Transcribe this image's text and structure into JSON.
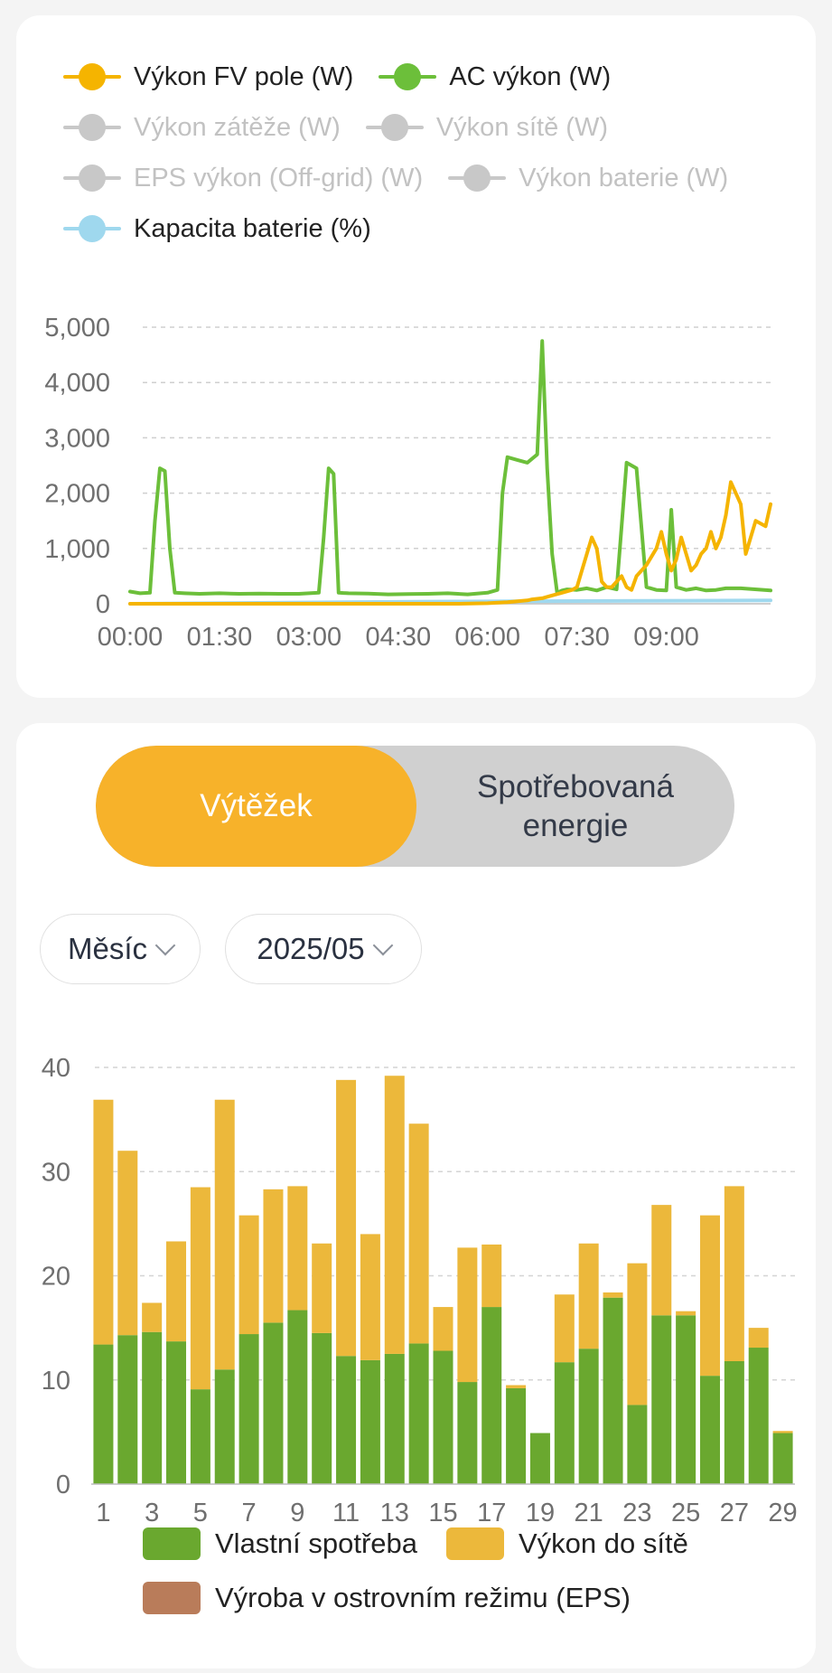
{
  "power_chart": {
    "legend": [
      {
        "label": "Výkon FV pole (W)",
        "color": "#f5b400",
        "active": true,
        "line": true
      },
      {
        "label": "AC výkon (W)",
        "color": "#6cbf3a",
        "active": true,
        "line": true
      },
      {
        "label": "Výkon zátěže (W)",
        "color": "#c8c8c8",
        "active": false,
        "line": true
      },
      {
        "label": "Výkon sítě (W)",
        "color": "#c8c8c8",
        "active": false,
        "line": true
      },
      {
        "label": "EPS výkon (Off-grid) (W)",
        "color": "#c8c8c8",
        "active": false,
        "line": true
      },
      {
        "label": "Výkon baterie (W)",
        "color": "#c8c8c8",
        "active": false,
        "line": true
      },
      {
        "label": "Kapacita baterie (%)",
        "color": "#9fd8ee",
        "active": true,
        "line": false
      }
    ]
  },
  "toggle": {
    "active_label": "Výtěžek",
    "inactive_label": "Spotřebovaná\nenergie"
  },
  "filters": {
    "period": "Měsíc",
    "date": "2025/05"
  },
  "monthly_legend": [
    {
      "label": "Vlastní spotřeba",
      "color": "#6aa82f"
    },
    {
      "label": "Výkon do sítě",
      "color": "#ecb83b"
    },
    {
      "label": "Výroba v ostrovním režimu (EPS)",
      "color": "#b97c5a"
    }
  ],
  "chart_data": [
    {
      "type": "line",
      "x_ticks": [
        "00:00",
        "01:30",
        "03:00",
        "04:30",
        "06:00",
        "07:30",
        "09:00"
      ],
      "y_ticks": [
        "0",
        "1,000",
        "2,000",
        "3,000",
        "4,000",
        "5,000"
      ],
      "ylim": [
        0,
        5000
      ],
      "xlim_minutes": [
        0,
        645
      ],
      "grid": true,
      "series": [
        {
          "name": "AC výkon (W)",
          "color": "#6cbf3a",
          "x": [
            "00:00",
            "00:10",
            "00:20",
            "00:25",
            "00:30",
            "00:35",
            "00:40",
            "00:45",
            "00:55",
            "01:10",
            "01:30",
            "01:50",
            "02:10",
            "02:30",
            "02:50",
            "03:00",
            "03:10",
            "03:15",
            "03:20",
            "03:25",
            "03:30",
            "03:40",
            "04:00",
            "04:20",
            "04:40",
            "05:00",
            "05:20",
            "05:40",
            "06:00",
            "06:10",
            "06:15",
            "06:20",
            "06:30",
            "06:40",
            "06:50",
            "06:55",
            "07:00",
            "07:05",
            "07:10",
            "07:15",
            "07:20",
            "07:30",
            "07:40",
            "07:50",
            "08:00",
            "08:10",
            "08:15",
            "08:20",
            "08:30",
            "08:40",
            "08:50",
            "09:00",
            "09:05",
            "09:10",
            "09:20",
            "09:30",
            "09:40",
            "09:50",
            "10:00",
            "10:15",
            "10:45"
          ],
          "values": [
            220,
            190,
            200,
            1500,
            2450,
            2400,
            1000,
            200,
            190,
            180,
            190,
            180,
            185,
            180,
            180,
            190,
            200,
            1200,
            2450,
            2350,
            200,
            190,
            185,
            170,
            175,
            180,
            190,
            170,
            200,
            250,
            2000,
            2650,
            2600,
            2550,
            2700,
            4750,
            2450,
            900,
            200,
            240,
            260,
            250,
            280,
            240,
            300,
            260,
            1400,
            2550,
            2450,
            300,
            250,
            240,
            1700,
            300,
            250,
            280,
            240,
            250,
            280,
            280,
            240
          ]
        },
        {
          "name": "Výkon FV pole (W)",
          "color": "#f5b400",
          "x": [
            "00:00",
            "05:30",
            "06:00",
            "06:20",
            "06:40",
            "06:45",
            "06:55",
            "07:05",
            "07:15",
            "07:25",
            "07:30",
            "07:35",
            "07:40",
            "07:45",
            "07:50",
            "07:55",
            "08:00",
            "08:05",
            "08:10",
            "08:15",
            "08:20",
            "08:25",
            "08:30",
            "08:40",
            "08:50",
            "08:55",
            "09:00",
            "09:05",
            "09:10",
            "09:15",
            "09:20",
            "09:25",
            "09:30",
            "09:35",
            "09:40",
            "09:45",
            "09:50",
            "09:55",
            "10:00",
            "10:05",
            "10:10",
            "10:15",
            "10:20",
            "10:30",
            "10:40",
            "10:45"
          ],
          "values": [
            0,
            0,
            10,
            30,
            60,
            80,
            100,
            150,
            200,
            250,
            300,
            600,
            900,
            1200,
            1000,
            400,
            300,
            300,
            400,
            500,
            300,
            250,
            500,
            700,
            1000,
            1300,
            900,
            600,
            800,
            1200,
            900,
            600,
            700,
            900,
            1000,
            1300,
            1000,
            1200,
            1600,
            2200,
            2000,
            1800,
            900,
            1500,
            1400,
            1800
          ]
        },
        {
          "name": "Kapacita baterie (%)",
          "color": "#9fd8ee",
          "x": [
            "00:00",
            "05:00",
            "10:45"
          ],
          "values": [
            0,
            40,
            60
          ]
        }
      ]
    },
    {
      "type": "bar",
      "stacked": true,
      "categories": [
        1,
        2,
        3,
        4,
        5,
        6,
        7,
        8,
        9,
        10,
        11,
        12,
        13,
        14,
        15,
        16,
        17,
        18,
        19,
        20,
        21,
        22,
        23,
        24,
        25,
        26,
        27,
        28,
        29
      ],
      "x_ticks": [
        "1",
        "3",
        "5",
        "7",
        "9",
        "11",
        "13",
        "15",
        "17",
        "19",
        "21",
        "23",
        "25",
        "27",
        "29"
      ],
      "y_ticks": [
        "0",
        "10",
        "20",
        "30",
        "40"
      ],
      "ylim": [
        0,
        40
      ],
      "grid": true,
      "series": [
        {
          "name": "Vlastní spotřeba",
          "color": "#6aa82f",
          "values": [
            13.4,
            14.3,
            14.6,
            13.7,
            9.1,
            11.0,
            14.4,
            15.5,
            16.7,
            14.5,
            12.3,
            11.9,
            12.5,
            13.5,
            12.8,
            9.8,
            17.0,
            9.2,
            4.9,
            11.7,
            13.0,
            17.9,
            7.6,
            16.2,
            16.2,
            10.4,
            11.8,
            13.1,
            4.9
          ]
        },
        {
          "name": "Výkon do sítě",
          "color": "#ecb83b",
          "values": [
            23.5,
            17.7,
            2.8,
            9.6,
            19.4,
            25.9,
            11.4,
            12.8,
            11.9,
            8.6,
            26.5,
            12.1,
            26.7,
            21.1,
            4.2,
            12.9,
            6.0,
            0.3,
            0,
            6.5,
            10.1,
            0.5,
            13.6,
            10.6,
            0.4,
            15.4,
            16.8,
            1.9,
            0.2
          ]
        },
        {
          "name": "Výroba v ostrovním režimu (EPS)",
          "color": "#b97c5a",
          "values": [
            0,
            0,
            0,
            0,
            0,
            0,
            0,
            0,
            0,
            0,
            0,
            0,
            0,
            0,
            0,
            0,
            0,
            0,
            0,
            0,
            0,
            0,
            0,
            0,
            0,
            0,
            0,
            0,
            0
          ]
        }
      ]
    }
  ]
}
